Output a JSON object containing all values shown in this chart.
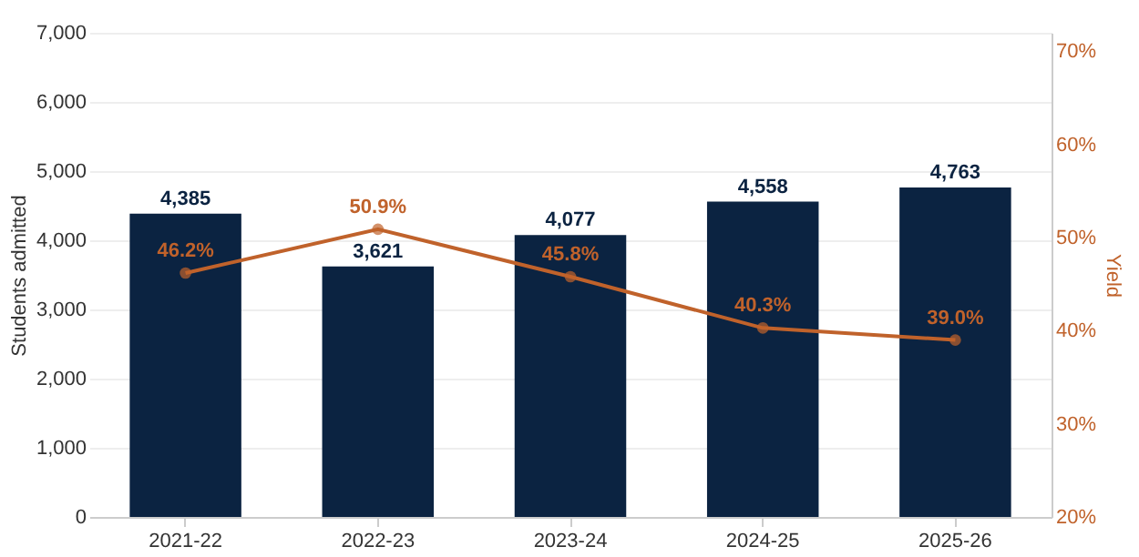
{
  "chart_data": {
    "type": "bar",
    "categories": [
      "2021-22",
      "2022-23",
      "2023-24",
      "2024-25",
      "2025-26"
    ],
    "ylabel": "Students admitted",
    "y2label": "Yield",
    "ylim": [
      0,
      7000
    ],
    "yticks": [
      {
        "value": 0,
        "label": "0"
      },
      {
        "value": 1000,
        "label": "1,000"
      },
      {
        "value": 2000,
        "label": "2,000"
      },
      {
        "value": 3000,
        "label": "3,000"
      },
      {
        "value": 4000,
        "label": "4,000"
      },
      {
        "value": 5000,
        "label": "5,000"
      },
      {
        "value": 6000,
        "label": "6,000"
      },
      {
        "value": 7000,
        "label": "7,000"
      }
    ],
    "y2lim": [
      20,
      72
    ],
    "y2ticks": [
      {
        "value": 20,
        "label": "20%"
      },
      {
        "value": 30,
        "label": "30%"
      },
      {
        "value": 40,
        "label": "40%"
      },
      {
        "value": 50,
        "label": "50%"
      },
      {
        "value": 60,
        "label": "60%"
      },
      {
        "value": 70,
        "label": "70%"
      }
    ],
    "grid": "y",
    "series": [
      {
        "color": "#0b2341",
        "values": [
          4385,
          3621,
          4077,
          4558,
          4763
        ],
        "value_labels": [
          "4,385",
          "3,621",
          "4,077",
          "4,558",
          "4,763"
        ]
      },
      {
        "type": "line",
        "axis": "y2",
        "color": "#c0622b",
        "marker": "circle",
        "line_style": "solid",
        "values": [
          46.2,
          50.9,
          45.8,
          40.3,
          39.0
        ],
        "value_labels": [
          "46.2%",
          "50.9%",
          "45.8%",
          "40.3%",
          "39.0%"
        ]
      }
    ]
  }
}
